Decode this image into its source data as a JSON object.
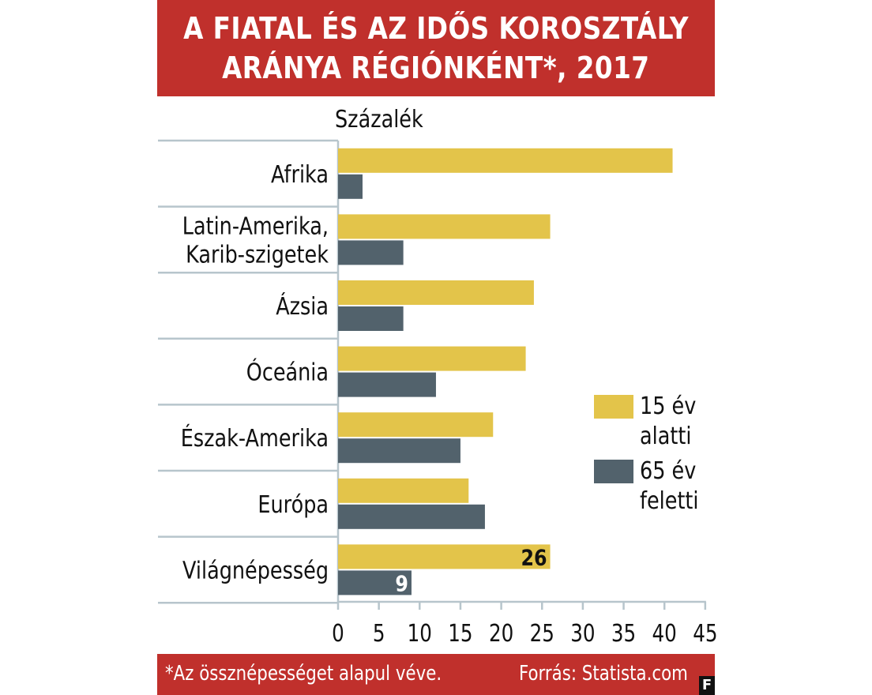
{
  "title": {
    "line1": "A FIATAL ÉS AZ IDŐS KOROSZTÁLY",
    "line2": "ARÁNYA RÉGIÓNKÉNT*, 2017"
  },
  "colors": {
    "banner": "#c0302c",
    "young": "#e3c44a",
    "old": "#52626c",
    "grid": "#b7c5cc"
  },
  "chart_data": {
    "type": "bar",
    "orientation": "horizontal",
    "title": "A FIATAL ÉS AZ IDŐS KOROSZTÁLY ARÁNYA RÉGIÓNKÉNT*, 2017",
    "unit_label": "Százalék",
    "categories": [
      [
        "Afrika"
      ],
      [
        "Latin-Amerika,",
        "Karib-szigetek"
      ],
      [
        "Ázsia"
      ],
      [
        "Óceánia"
      ],
      [
        "Észak-Amerika"
      ],
      [
        "Európa"
      ],
      [
        "Világnépesség"
      ]
    ],
    "series": [
      {
        "name_lines": [
          "15 év",
          "alatti"
        ],
        "color": "#e3c44a",
        "values": [
          41,
          26,
          24,
          23,
          19,
          16,
          26
        ]
      },
      {
        "name_lines": [
          "65 év",
          "feletti"
        ],
        "color": "#52626c",
        "values": [
          3,
          8,
          8,
          12,
          15,
          18,
          9
        ]
      }
    ],
    "data_labels": [
      {
        "category_index": 6,
        "series_index": 0,
        "text": "26"
      },
      {
        "category_index": 6,
        "series_index": 1,
        "text": "9"
      }
    ],
    "xlim": [
      0,
      45
    ],
    "xticks": [
      "0",
      "5",
      "10",
      "15",
      "20",
      "25",
      "30",
      "35",
      "40",
      "45"
    ],
    "legend_position": "right"
  },
  "footer": {
    "note": "*Az össznépességet alapul véve.",
    "source": "Forrás: Statista.com",
    "logo": "F"
  }
}
